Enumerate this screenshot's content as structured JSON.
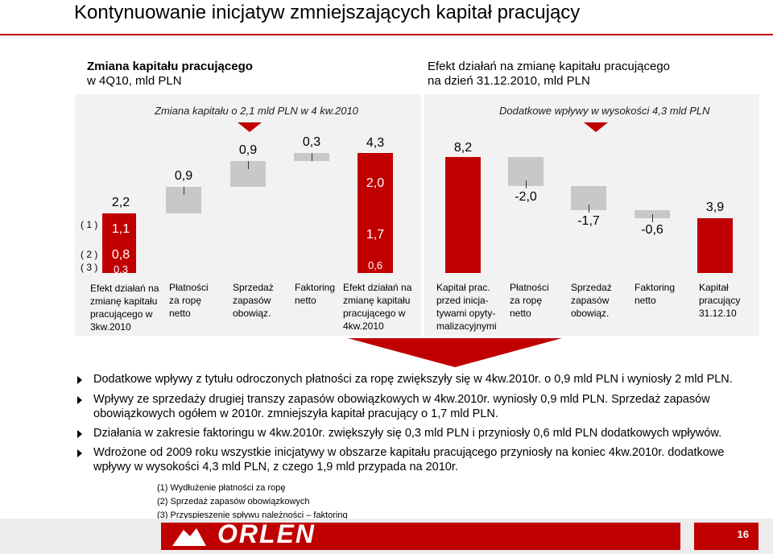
{
  "slide": {
    "title": "Kontynuowanie inicjatyw zmniejszających kapitał pracujący",
    "page_number": "16"
  },
  "left_panel": {
    "heading_line1": "Zmiana kapitału pracującego",
    "heading_line2": "w 4Q10, mld PLN",
    "band_label": "Zmiana kapitału o 2,1 mld PLN w 4 kw.2010",
    "row_labels": [
      "( 1 )",
      "( 2 )",
      "( 3 )"
    ],
    "bars": {
      "start_total": "2,2",
      "start_seg1": "1,1",
      "start_seg2": "0,8",
      "start_seg3": "0,3",
      "oil_payments": "0,9",
      "stock_sales": "0,9",
      "factoring": "0,3",
      "end_total": "4,3",
      "end_seg1": "2,0",
      "end_seg2": "1,7",
      "end_seg3": "0,6"
    },
    "captions": [
      "Efekt działań na zmianę kapitału pracującego w 3kw.2010",
      "Płatności za ropę netto",
      "Sprzedaż zapasów obowiąz.",
      "Faktoring netto",
      "Efekt działań na zmianę kapitału pracującego w 4kw.2010"
    ]
  },
  "right_panel": {
    "heading_line1": "Efekt działań na zmianę kapitału pracującego",
    "heading_line2": "na dzień 31.12.2010, mld PLN",
    "band_label": "Dodatkowe wpływy w wysokości 4,3 mld PLN",
    "bars": {
      "capital_before": "8,2",
      "oil_payments": "-2,0",
      "stock_sales": "-1,7",
      "factoring": "-0,6",
      "capital_end": "3,9"
    },
    "captions": [
      "Kapitał prac. przed inicja-tywami opyty-malizacyjnymi",
      "Płatności za ropę netto",
      "Sprzedaż zapasów obowiąz.",
      "Faktoring netto",
      "Kapitał pracujący 31.12.10"
    ]
  },
  "bullets": [
    "Dodatkowe wpływy z tytułu odroczonych płatności za ropę zwiększyły się w 4kw.2010r. o 0,9 mld PLN i wyniosły 2 mld PLN.",
    "Wpływy ze sprzedaży drugiej transzy zapasów obowiązkowych w 4kw.2010r. wyniosły 0,9 mld PLN. Sprzedaż zapasów obowiązkowych ogółem w 2010r. zmniejszyła kapitał pracujący o 1,7 mld PLN.",
    "Działania w zakresie faktoringu w 4kw.2010r. zwiększyły się 0,3 mld PLN i przyniosły 0,6 mld PLN dodatkowych wpływów.",
    "Wdrożone od 2009 roku wszystkie inicjatywy w obszarze kapitału pracującego przyniosły na koniec 4kw.2010r. dodatkowe wpływy w wysokości 4,3 mld PLN, z czego 1,9 mld przypada na 2010r."
  ],
  "footnotes": [
    "(1) Wydłużenie płatności za ropę",
    "(2) Sprzedaż zapasów obowiązkowych",
    "(3) Przyspieszenie spływu należności – faktoring"
  ],
  "footer": {
    "logo_text": "ORLEN"
  },
  "colors": {
    "accent_red": "#c00000",
    "bar_grey": "#c8c8c8",
    "panel_bg": "#f2f2f2"
  }
}
